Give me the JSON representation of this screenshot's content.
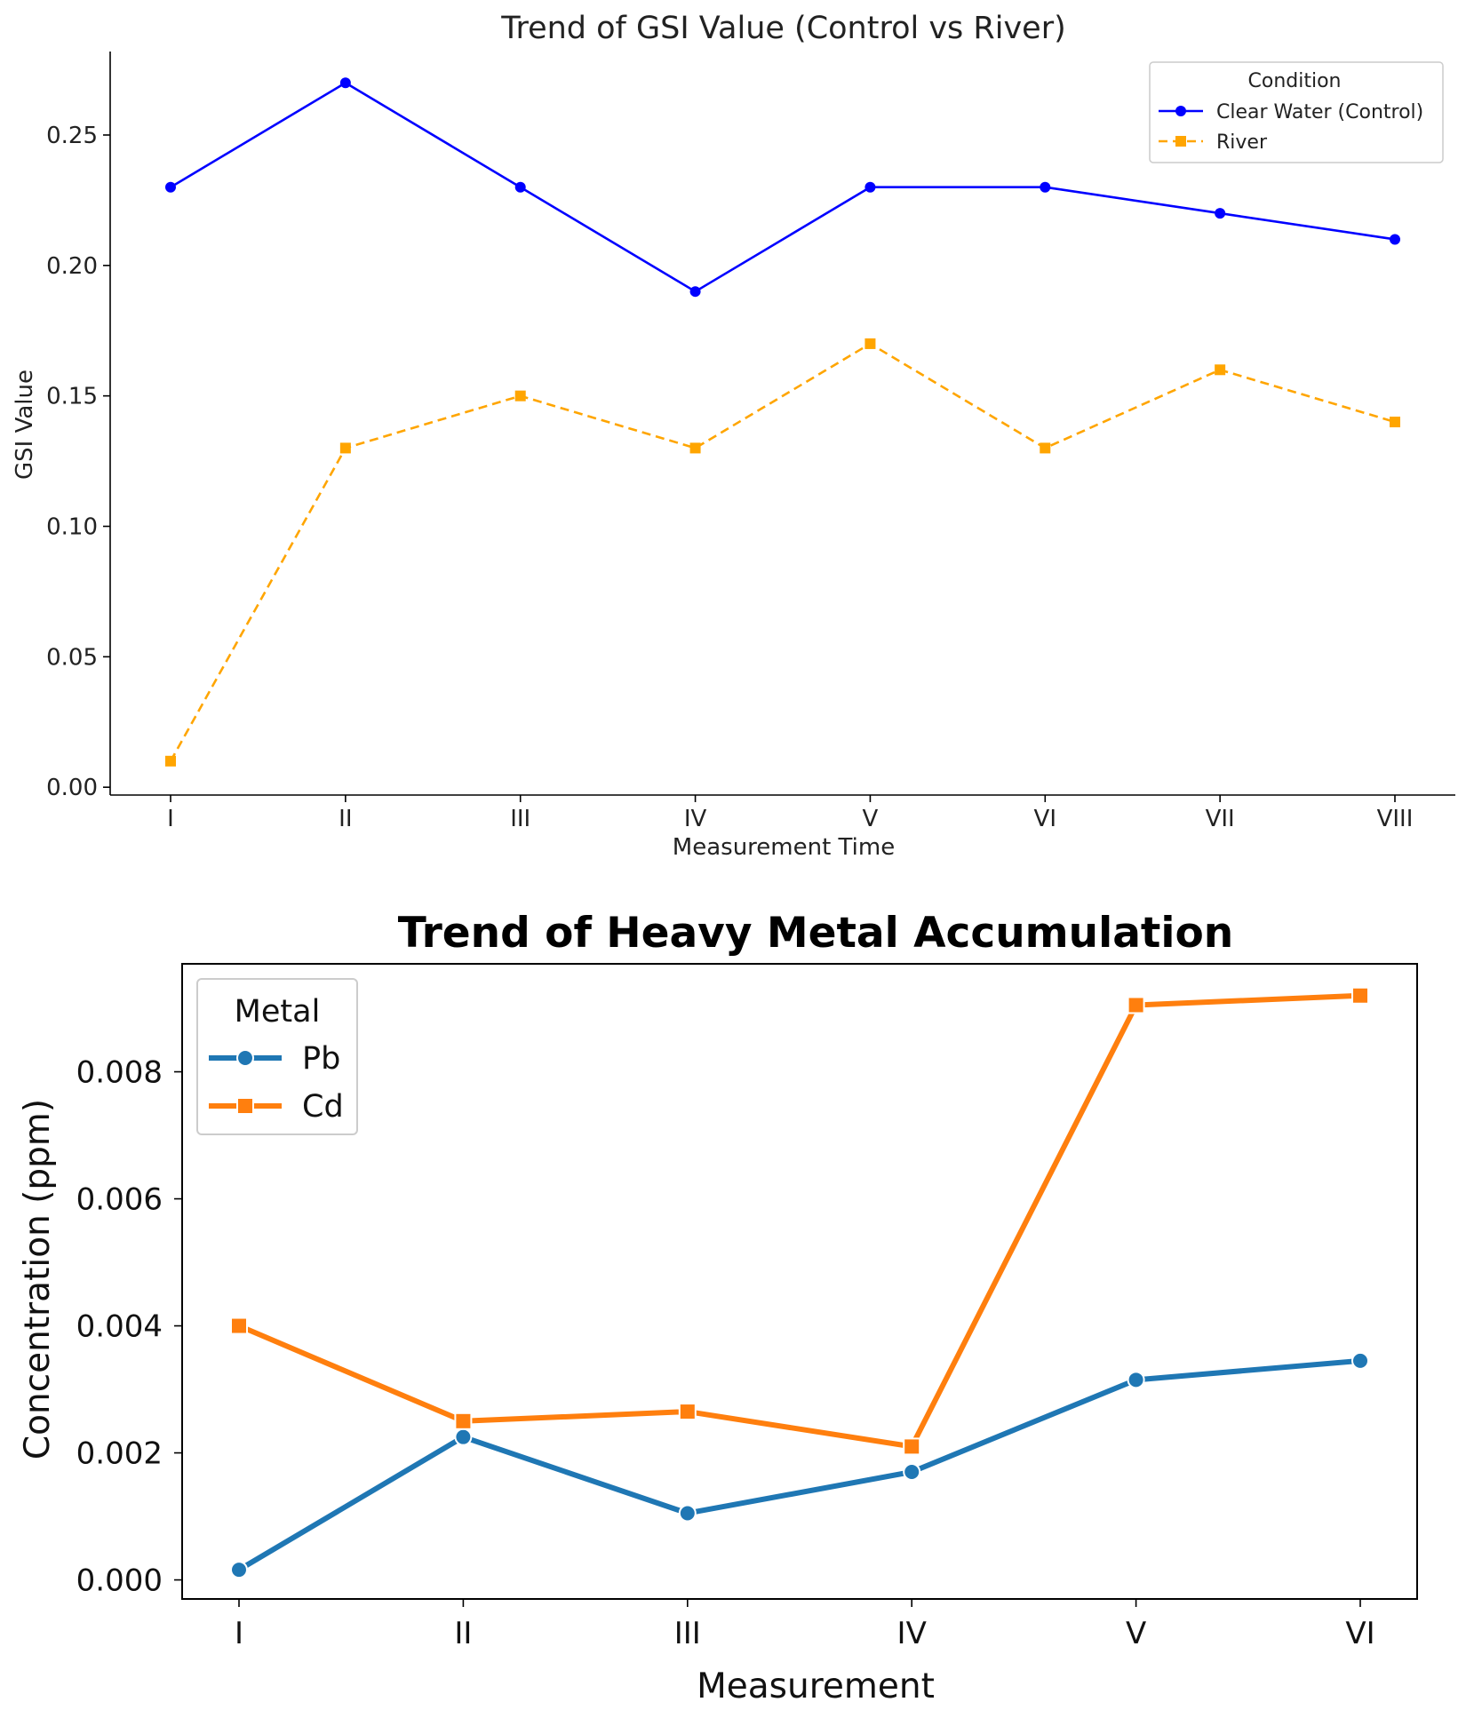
{
  "chart_data": [
    {
      "type": "line",
      "title": "Trend of GSI Value (Control vs River)",
      "xlabel": "Measurement Time",
      "ylabel": "GSI Value",
      "categories": [
        "I",
        "II",
        "III",
        "IV",
        "V",
        "VI",
        "VII",
        "VIII"
      ],
      "ylim": [
        -0.003,
        0.282
      ],
      "yticks": [
        "0.00",
        "0.05",
        "0.10",
        "0.15",
        "0.20",
        "0.25"
      ],
      "grid": false,
      "legend": {
        "title": "Condition",
        "placement": "upper right"
      },
      "series": [
        {
          "name": "Clear Water (Control)",
          "color": "#0000ff",
          "marker": "circle",
          "dash": "solid",
          "values": [
            0.23,
            0.27,
            0.23,
            0.19,
            0.23,
            0.23,
            0.22,
            0.21
          ]
        },
        {
          "name": "River",
          "color": "#ffa500",
          "marker": "square",
          "dash": "dashed",
          "values": [
            0.01,
            0.13,
            0.15,
            0.13,
            0.17,
            0.13,
            0.16,
            0.14
          ]
        }
      ]
    },
    {
      "type": "line",
      "title": "Trend of Heavy Metal Accumulation",
      "xlabel": "Measurement",
      "ylabel": "Concentration (ppm)",
      "categories": [
        "I",
        "II",
        "III",
        "IV",
        "V",
        "VI"
      ],
      "ylim": [
        -0.0003,
        0.0097
      ],
      "yticks": [
        "0.000",
        "0.002",
        "0.004",
        "0.006",
        "0.008"
      ],
      "grid": false,
      "legend": {
        "title": "Metal",
        "placement": "upper left"
      },
      "series": [
        {
          "name": "Pb",
          "color": "#1f77b4",
          "marker": "circle",
          "dash": "solid",
          "values": [
            0.00016,
            0.00225,
            0.00105,
            0.0017,
            0.00315,
            0.00345
          ]
        },
        {
          "name": "Cd",
          "color": "#ff7f0e",
          "marker": "square",
          "dash": "solid",
          "values": [
            0.004,
            0.0025,
            0.00265,
            0.0021,
            0.00905,
            0.0092
          ]
        }
      ]
    }
  ]
}
